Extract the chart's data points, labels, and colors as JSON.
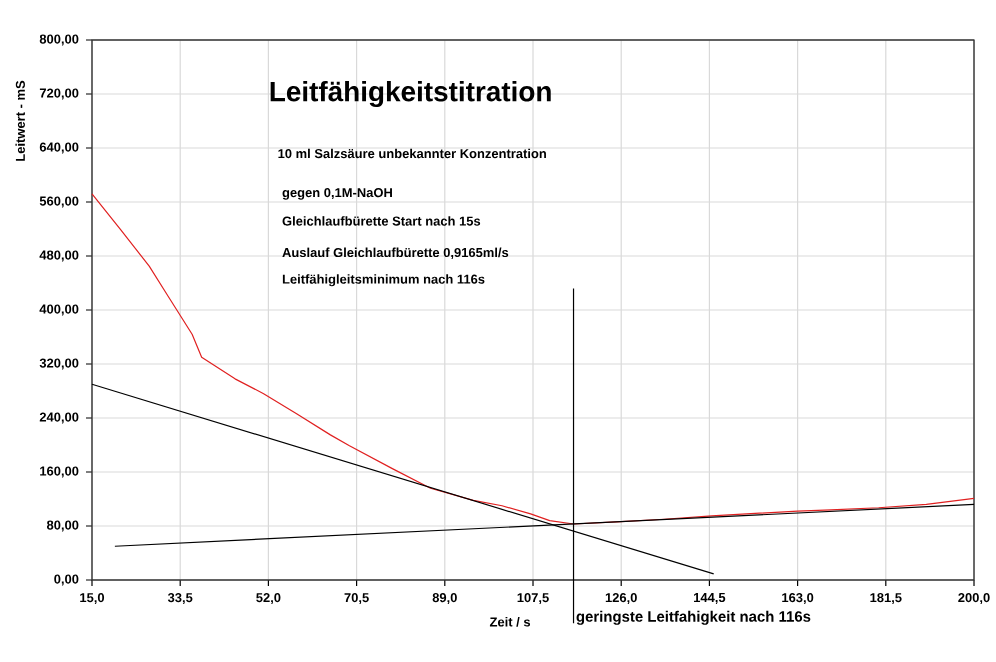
{
  "chart_data": {
    "type": "line",
    "title": "Leitfähigkeitstitration",
    "xlabel": "Zeit / s",
    "ylabel": "Leitwert - mS",
    "annotations": [
      "10 ml Salzsäure unbekannter Konzentration",
      "gegen 0,1M-NaOH",
      "Gleichlaufbürette Start nach 15s",
      "Auslauf Gleichlaufbürette 0,9165ml/s",
      "Leitfähigleitsminimum nach 116s"
    ],
    "series": [
      {
        "color": "#e02020",
        "x": [
          15,
          21,
          27,
          31,
          36,
          38,
          45,
          51,
          58,
          65,
          69,
          78,
          86,
          95,
          101,
          107,
          111,
          116,
          125,
          135,
          145,
          155,
          163,
          170,
          180,
          190,
          200
        ],
        "values": [
          572,
          519,
          465,
          420,
          364,
          330,
          298,
          276,
          246,
          215,
          199,
          165,
          136,
          118,
          110,
          98,
          88,
          83,
          86,
          90,
          95,
          99,
          102,
          104,
          107,
          112,
          121
        ]
      },
      {
        "color": "#000000",
        "x": [
          15,
          145.4
        ],
        "values": [
          290,
          9
        ]
      },
      {
        "color": "#000000",
        "x": [
          19.8,
          200
        ],
        "values": [
          50,
          112
        ]
      }
    ],
    "xlim": [
      15,
      200
    ],
    "ylim": [
      0,
      800
    ],
    "xticks": [
      {
        "value": 15,
        "label": "15,0"
      },
      {
        "value": 33.5,
        "label": "33,5"
      },
      {
        "value": 52,
        "label": "52,0"
      },
      {
        "value": 70.5,
        "label": "70,5"
      },
      {
        "value": 89,
        "label": "89,0"
      },
      {
        "value": 107.5,
        "label": "107,5"
      },
      {
        "value": 126,
        "label": "126,0"
      },
      {
        "value": 144.5,
        "label": "144,5"
      },
      {
        "value": 163,
        "label": "163,0"
      },
      {
        "value": 181.5,
        "label": "181,5"
      },
      {
        "value": 200,
        "label": "200,0"
      }
    ],
    "yticks": [
      {
        "value": 0,
        "label": "0,00"
      },
      {
        "value": 80,
        "label": "80,00"
      },
      {
        "value": 160,
        "label": "160,00"
      },
      {
        "value": 240,
        "label": "240,00"
      },
      {
        "value": 320,
        "label": "320,00"
      },
      {
        "value": 400,
        "label": "400,00"
      },
      {
        "value": 480,
        "label": "480,00"
      },
      {
        "value": 560,
        "label": "560,00"
      },
      {
        "value": 640,
        "label": "640,00"
      },
      {
        "value": 720,
        "label": "720,00"
      },
      {
        "value": 800,
        "label": "800,00"
      }
    ],
    "ref_lines": [
      {
        "axis": "x",
        "value": 116,
        "label": "geringste Leitfahigkeit nach 116s",
        "color": "#000000"
      }
    ],
    "grid": true,
    "marker": "none",
    "line_style": "solid"
  }
}
